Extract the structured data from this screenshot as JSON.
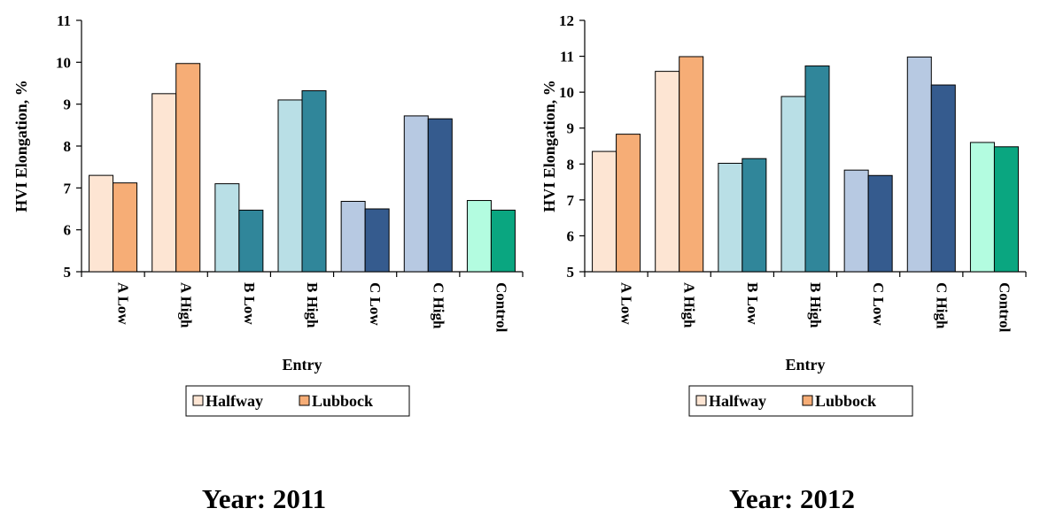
{
  "chart_data": [
    {
      "type": "bar",
      "caption": "Year: 2011",
      "xlabel": "Entry",
      "ylabel": "HVI Elongation, %",
      "ylim": [
        5,
        11
      ],
      "yticks": [
        5,
        6,
        7,
        8,
        9,
        10,
        11
      ],
      "categories": [
        "A Low",
        "A High",
        "B Low",
        "B High",
        "C Low",
        "C High",
        "Control"
      ],
      "series": [
        {
          "name": "Halfway",
          "values": [
            7.3,
            9.25,
            7.1,
            9.1,
            6.68,
            8.72,
            6.7
          ]
        },
        {
          "name": "Lubbock",
          "values": [
            7.12,
            9.97,
            6.47,
            9.32,
            6.5,
            8.65,
            6.47
          ]
        }
      ],
      "bar_colors": {
        "Halfway": [
          "#fde5d3",
          "#fde5d3",
          "#b9dfe6",
          "#b9dfe6",
          "#b7c9e2",
          "#b7c9e2",
          "#b3fce0"
        ],
        "Lubbock": [
          "#f6ad76",
          "#f6ad76",
          "#30869a",
          "#30869a",
          "#355b8e",
          "#355b8e",
          "#0aa680"
        ]
      },
      "legend": [
        "Halfway",
        "Lubbock"
      ],
      "legend_colors": [
        "#fde5d3",
        "#f6ad76"
      ],
      "legend_position": "bottom",
      "grid": false
    },
    {
      "type": "bar",
      "caption": "Year: 2012",
      "xlabel": "Entry",
      "ylabel": "HVI Elongation, %",
      "ylim": [
        5,
        12
      ],
      "yticks": [
        5,
        6,
        7,
        8,
        9,
        10,
        11,
        12
      ],
      "categories": [
        "A Low",
        "A High",
        "B Low",
        "B High",
        "C Low",
        "C High",
        "Control"
      ],
      "series": [
        {
          "name": "Halfway",
          "values": [
            8.35,
            10.58,
            8.02,
            9.88,
            7.83,
            10.98,
            8.6
          ]
        },
        {
          "name": "Lubbock",
          "values": [
            8.83,
            10.99,
            8.15,
            10.73,
            7.68,
            10.2,
            8.48
          ]
        }
      ],
      "bar_colors": {
        "Halfway": [
          "#fde5d3",
          "#fde5d3",
          "#b9dfe6",
          "#b9dfe6",
          "#b7c9e2",
          "#b7c9e2",
          "#b3fce0"
        ],
        "Lubbock": [
          "#f6ad76",
          "#f6ad76",
          "#30869a",
          "#30869a",
          "#355b8e",
          "#355b8e",
          "#0aa680"
        ]
      },
      "legend": [
        "Halfway",
        "Lubbock"
      ],
      "legend_colors": [
        "#fde5d3",
        "#f6ad76"
      ],
      "legend_position": "bottom",
      "grid": false
    }
  ]
}
